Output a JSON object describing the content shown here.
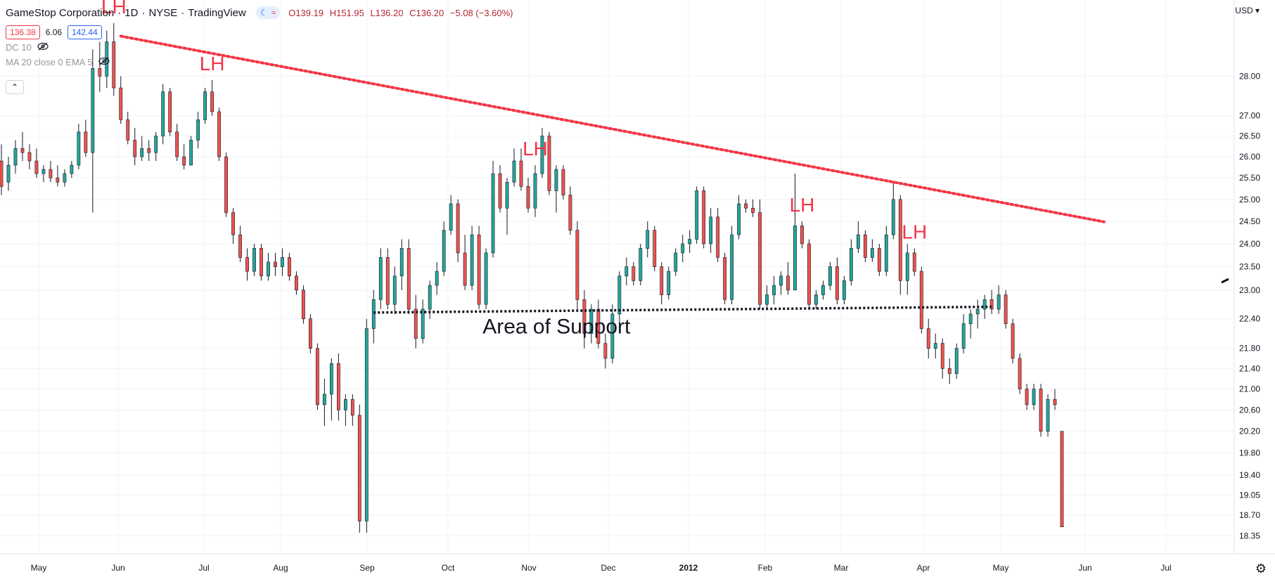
{
  "header": {
    "symbol": "GameStop Corporation",
    "interval": "1D",
    "exchange": "NYSE",
    "source": "TradingView",
    "ohlc": {
      "open": "O139.19",
      "high": "H151.95",
      "low": "L136.20",
      "close": "C136.20",
      "change": "−5.08 (−3.60%)"
    },
    "price_sell": "136.38",
    "spread": "6.06",
    "price_buy": "142.44",
    "indicator_1": "DC 10",
    "indicator_2": "MA 20 close 0 EMA 5",
    "collapse_glyph": "⌃",
    "currency": "USD"
  },
  "colors": {
    "up": "#26a69a",
    "down": "#ef5350",
    "wick": "#131722",
    "trendline": "#f23645",
    "support": "#131722",
    "grid": "#f0f3fa"
  },
  "chart_data": {
    "type": "candlestick",
    "title": "GameStop Corporation · 1D · NYSE",
    "price_axis_ticks": [
      18.35,
      18.7,
      19.05,
      19.4,
      19.8,
      20.2,
      20.6,
      21.0,
      21.4,
      21.8,
      22.4,
      23.0,
      23.5,
      24.0,
      24.5,
      25.0,
      25.5,
      26.0,
      26.5,
      27.0,
      28.0
    ],
    "time_axis_ticks": [
      "May",
      "Jun",
      "Jul",
      "Aug",
      "Sep",
      "Oct",
      "Nov",
      "Dec",
      "2012",
      "Feb",
      "Mar",
      "Apr",
      "May",
      "Jun",
      "Jul"
    ],
    "ylim": [
      18.2,
      29.8
    ],
    "candles": [
      {
        "o": 25.9,
        "h": 26.3,
        "l": 25.1,
        "c": 25.3
      },
      {
        "o": 25.4,
        "h": 26.0,
        "l": 25.2,
        "c": 25.8
      },
      {
        "o": 25.8,
        "h": 26.4,
        "l": 25.6,
        "c": 26.2
      },
      {
        "o": 26.2,
        "h": 26.6,
        "l": 25.9,
        "c": 26.1
      },
      {
        "o": 26.1,
        "h": 26.3,
        "l": 25.7,
        "c": 25.9
      },
      {
        "o": 25.9,
        "h": 26.2,
        "l": 25.5,
        "c": 25.6
      },
      {
        "o": 25.6,
        "h": 25.8,
        "l": 25.4,
        "c": 25.7
      },
      {
        "o": 25.7,
        "h": 25.9,
        "l": 25.4,
        "c": 25.5
      },
      {
        "o": 25.5,
        "h": 25.8,
        "l": 25.3,
        "c": 25.4
      },
      {
        "o": 25.4,
        "h": 25.7,
        "l": 25.3,
        "c": 25.6
      },
      {
        "o": 25.6,
        "h": 25.9,
        "l": 25.5,
        "c": 25.8
      },
      {
        "o": 25.8,
        "h": 26.8,
        "l": 25.7,
        "c": 26.6
      },
      {
        "o": 26.6,
        "h": 26.9,
        "l": 26.0,
        "c": 26.1
      },
      {
        "o": 26.1,
        "h": 28.7,
        "l": 24.7,
        "c": 28.2
      },
      {
        "o": 28.2,
        "h": 28.9,
        "l": 27.6,
        "c": 28.0
      },
      {
        "o": 28.0,
        "h": 29.2,
        "l": 27.7,
        "c": 28.9
      },
      {
        "o": 28.9,
        "h": 29.4,
        "l": 27.5,
        "c": 27.7
      },
      {
        "o": 27.7,
        "h": 28.0,
        "l": 26.8,
        "c": 26.9
      },
      {
        "o": 26.9,
        "h": 27.1,
        "l": 26.3,
        "c": 26.4
      },
      {
        "o": 26.4,
        "h": 26.7,
        "l": 25.8,
        "c": 26.0
      },
      {
        "o": 26.0,
        "h": 26.5,
        "l": 25.9,
        "c": 26.2
      },
      {
        "o": 26.2,
        "h": 26.4,
        "l": 25.9,
        "c": 26.1
      },
      {
        "o": 26.1,
        "h": 26.6,
        "l": 25.9,
        "c": 26.5
      },
      {
        "o": 26.5,
        "h": 27.8,
        "l": 26.3,
        "c": 27.6
      },
      {
        "o": 27.6,
        "h": 27.7,
        "l": 26.5,
        "c": 26.6
      },
      {
        "o": 26.6,
        "h": 26.8,
        "l": 25.9,
        "c": 26.0
      },
      {
        "o": 26.0,
        "h": 26.3,
        "l": 25.7,
        "c": 25.8
      },
      {
        "o": 25.8,
        "h": 26.5,
        "l": 25.8,
        "c": 26.4
      },
      {
        "o": 26.4,
        "h": 27.1,
        "l": 26.2,
        "c": 26.9
      },
      {
        "o": 26.9,
        "h": 27.7,
        "l": 26.8,
        "c": 27.6
      },
      {
        "o": 27.6,
        "h": 27.9,
        "l": 27.0,
        "c": 27.1
      },
      {
        "o": 27.1,
        "h": 27.2,
        "l": 25.9,
        "c": 26.0
      },
      {
        "o": 26.0,
        "h": 26.1,
        "l": 24.6,
        "c": 24.7
      },
      {
        "o": 24.7,
        "h": 24.8,
        "l": 24.0,
        "c": 24.2
      },
      {
        "o": 24.2,
        "h": 24.4,
        "l": 23.6,
        "c": 23.7
      },
      {
        "o": 23.7,
        "h": 23.9,
        "l": 23.2,
        "c": 23.4
      },
      {
        "o": 23.4,
        "h": 24.0,
        "l": 23.3,
        "c": 23.9
      },
      {
        "o": 23.9,
        "h": 24.0,
        "l": 23.2,
        "c": 23.3
      },
      {
        "o": 23.3,
        "h": 23.8,
        "l": 23.2,
        "c": 23.6
      },
      {
        "o": 23.6,
        "h": 23.8,
        "l": 23.3,
        "c": 23.5
      },
      {
        "o": 23.5,
        "h": 23.9,
        "l": 23.3,
        "c": 23.7
      },
      {
        "o": 23.7,
        "h": 23.8,
        "l": 23.2,
        "c": 23.3
      },
      {
        "o": 23.3,
        "h": 23.4,
        "l": 22.9,
        "c": 23.0
      },
      {
        "o": 23.0,
        "h": 23.1,
        "l": 22.3,
        "c": 22.4
      },
      {
        "o": 22.4,
        "h": 22.5,
        "l": 21.7,
        "c": 21.8
      },
      {
        "o": 21.8,
        "h": 21.9,
        "l": 20.6,
        "c": 20.7
      },
      {
        "o": 20.7,
        "h": 21.2,
        "l": 20.3,
        "c": 20.9
      },
      {
        "o": 20.9,
        "h": 21.6,
        "l": 20.4,
        "c": 21.5
      },
      {
        "o": 21.5,
        "h": 21.7,
        "l": 20.4,
        "c": 20.6
      },
      {
        "o": 20.6,
        "h": 20.9,
        "l": 20.3,
        "c": 20.8
      },
      {
        "o": 20.8,
        "h": 20.9,
        "l": 20.3,
        "c": 20.5
      },
      {
        "o": 20.5,
        "h": 20.7,
        "l": 18.4,
        "c": 18.6
      },
      {
        "o": 18.6,
        "h": 22.4,
        "l": 18.4,
        "c": 22.2
      },
      {
        "o": 22.2,
        "h": 23.0,
        "l": 21.9,
        "c": 22.8
      },
      {
        "o": 22.8,
        "h": 23.9,
        "l": 22.6,
        "c": 23.7
      },
      {
        "o": 23.7,
        "h": 23.9,
        "l": 22.6,
        "c": 22.7
      },
      {
        "o": 22.7,
        "h": 23.5,
        "l": 22.5,
        "c": 23.3
      },
      {
        "o": 23.3,
        "h": 24.1,
        "l": 23.0,
        "c": 23.9
      },
      {
        "o": 23.9,
        "h": 24.1,
        "l": 22.5,
        "c": 22.6
      },
      {
        "o": 22.6,
        "h": 22.9,
        "l": 21.8,
        "c": 22.0
      },
      {
        "o": 22.0,
        "h": 22.8,
        "l": 21.9,
        "c": 22.6
      },
      {
        "o": 22.6,
        "h": 23.2,
        "l": 22.4,
        "c": 23.1
      },
      {
        "o": 23.1,
        "h": 23.6,
        "l": 22.9,
        "c": 23.4
      },
      {
        "o": 23.4,
        "h": 24.5,
        "l": 23.3,
        "c": 24.3
      },
      {
        "o": 24.3,
        "h": 25.1,
        "l": 24.2,
        "c": 24.9
      },
      {
        "o": 24.9,
        "h": 25.0,
        "l": 23.6,
        "c": 23.8
      },
      {
        "o": 23.8,
        "h": 24.2,
        "l": 23.0,
        "c": 23.1
      },
      {
        "o": 23.1,
        "h": 24.4,
        "l": 23.0,
        "c": 24.2
      },
      {
        "o": 24.2,
        "h": 24.4,
        "l": 22.6,
        "c": 22.7
      },
      {
        "o": 22.7,
        "h": 23.9,
        "l": 22.6,
        "c": 23.8
      },
      {
        "o": 23.8,
        "h": 25.9,
        "l": 23.7,
        "c": 25.6
      },
      {
        "o": 25.6,
        "h": 25.8,
        "l": 24.7,
        "c": 24.8
      },
      {
        "o": 24.8,
        "h": 25.5,
        "l": 24.2,
        "c": 25.4
      },
      {
        "o": 25.4,
        "h": 26.2,
        "l": 25.3,
        "c": 25.9
      },
      {
        "o": 25.9,
        "h": 26.2,
        "l": 25.2,
        "c": 25.3
      },
      {
        "o": 25.3,
        "h": 25.5,
        "l": 24.7,
        "c": 24.8
      },
      {
        "o": 24.8,
        "h": 25.8,
        "l": 24.6,
        "c": 25.6
      },
      {
        "o": 25.6,
        "h": 26.7,
        "l": 25.5,
        "c": 26.5
      },
      {
        "o": 26.5,
        "h": 26.6,
        "l": 25.1,
        "c": 25.2
      },
      {
        "o": 25.2,
        "h": 25.8,
        "l": 24.7,
        "c": 25.7
      },
      {
        "o": 25.7,
        "h": 25.8,
        "l": 25.0,
        "c": 25.1
      },
      {
        "o": 25.1,
        "h": 25.3,
        "l": 24.2,
        "c": 24.3
      },
      {
        "o": 24.3,
        "h": 24.5,
        "l": 22.6,
        "c": 22.8
      },
      {
        "o": 22.8,
        "h": 23.0,
        "l": 21.8,
        "c": 22.1
      },
      {
        "o": 22.1,
        "h": 22.7,
        "l": 21.9,
        "c": 22.6
      },
      {
        "o": 22.6,
        "h": 22.8,
        "l": 21.8,
        "c": 21.9
      },
      {
        "o": 21.9,
        "h": 22.1,
        "l": 21.4,
        "c": 21.6
      },
      {
        "o": 21.6,
        "h": 22.7,
        "l": 21.5,
        "c": 22.5
      },
      {
        "o": 22.5,
        "h": 23.4,
        "l": 22.3,
        "c": 23.3
      },
      {
        "o": 23.3,
        "h": 23.7,
        "l": 23.1,
        "c": 23.5
      },
      {
        "o": 23.5,
        "h": 23.6,
        "l": 23.1,
        "c": 23.2
      },
      {
        "o": 23.2,
        "h": 24.0,
        "l": 23.1,
        "c": 23.9
      },
      {
        "o": 23.9,
        "h": 24.5,
        "l": 23.7,
        "c": 24.3
      },
      {
        "o": 24.3,
        "h": 24.4,
        "l": 23.4,
        "c": 23.5
      },
      {
        "o": 23.5,
        "h": 23.6,
        "l": 22.7,
        "c": 22.9
      },
      {
        "o": 22.9,
        "h": 23.5,
        "l": 22.8,
        "c": 23.4
      },
      {
        "o": 23.4,
        "h": 23.9,
        "l": 23.3,
        "c": 23.8
      },
      {
        "o": 23.8,
        "h": 24.2,
        "l": 23.6,
        "c": 24.0
      },
      {
        "o": 24.0,
        "h": 24.3,
        "l": 23.8,
        "c": 24.1
      },
      {
        "o": 24.1,
        "h": 25.3,
        "l": 24.0,
        "c": 25.2
      },
      {
        "o": 25.2,
        "h": 25.3,
        "l": 23.9,
        "c": 24.0
      },
      {
        "o": 24.0,
        "h": 24.8,
        "l": 23.8,
        "c": 24.6
      },
      {
        "o": 24.6,
        "h": 24.8,
        "l": 23.6,
        "c": 23.7
      },
      {
        "o": 23.7,
        "h": 23.8,
        "l": 22.7,
        "c": 22.8
      },
      {
        "o": 22.8,
        "h": 24.4,
        "l": 22.7,
        "c": 24.2
      },
      {
        "o": 24.2,
        "h": 25.1,
        "l": 24.1,
        "c": 24.9
      },
      {
        "o": 24.9,
        "h": 25.0,
        "l": 24.7,
        "c": 24.8
      },
      {
        "o": 24.8,
        "h": 25.0,
        "l": 24.6,
        "c": 24.7
      },
      {
        "o": 24.7,
        "h": 25.0,
        "l": 22.6,
        "c": 22.7
      },
      {
        "o": 22.7,
        "h": 23.1,
        "l": 22.6,
        "c": 22.9
      },
      {
        "o": 22.9,
        "h": 23.3,
        "l": 22.7,
        "c": 23.1
      },
      {
        "o": 23.1,
        "h": 23.4,
        "l": 22.9,
        "c": 23.3
      },
      {
        "o": 23.3,
        "h": 23.6,
        "l": 22.9,
        "c": 23.0
      },
      {
        "o": 23.0,
        "h": 25.6,
        "l": 23.0,
        "c": 24.4
      },
      {
        "o": 24.4,
        "h": 24.5,
        "l": 23.9,
        "c": 24.0
      },
      {
        "o": 24.0,
        "h": 24.1,
        "l": 22.6,
        "c": 22.7
      },
      {
        "o": 22.7,
        "h": 23.0,
        "l": 22.6,
        "c": 22.9
      },
      {
        "o": 22.9,
        "h": 23.2,
        "l": 22.8,
        "c": 23.1
      },
      {
        "o": 23.1,
        "h": 23.6,
        "l": 23.0,
        "c": 23.5
      },
      {
        "o": 23.5,
        "h": 23.7,
        "l": 22.7,
        "c": 22.8
      },
      {
        "o": 22.8,
        "h": 23.3,
        "l": 22.7,
        "c": 23.2
      },
      {
        "o": 23.2,
        "h": 24.1,
        "l": 23.1,
        "c": 23.9
      },
      {
        "o": 23.9,
        "h": 24.5,
        "l": 23.8,
        "c": 24.2
      },
      {
        "o": 24.2,
        "h": 24.3,
        "l": 23.6,
        "c": 23.7
      },
      {
        "o": 23.7,
        "h": 24.1,
        "l": 23.6,
        "c": 23.9
      },
      {
        "o": 23.9,
        "h": 24.0,
        "l": 23.3,
        "c": 23.4
      },
      {
        "o": 23.4,
        "h": 24.4,
        "l": 23.3,
        "c": 24.2
      },
      {
        "o": 24.2,
        "h": 25.4,
        "l": 24.1,
        "c": 25.0
      },
      {
        "o": 25.0,
        "h": 25.1,
        "l": 22.9,
        "c": 23.2
      },
      {
        "o": 23.2,
        "h": 24.0,
        "l": 22.9,
        "c": 23.8
      },
      {
        "o": 23.8,
        "h": 23.9,
        "l": 23.3,
        "c": 23.4
      },
      {
        "o": 23.4,
        "h": 23.5,
        "l": 22.1,
        "c": 22.2
      },
      {
        "o": 22.2,
        "h": 22.4,
        "l": 21.6,
        "c": 21.8
      },
      {
        "o": 21.8,
        "h": 22.1,
        "l": 21.6,
        "c": 21.9
      },
      {
        "o": 21.9,
        "h": 22.0,
        "l": 21.2,
        "c": 21.4
      },
      {
        "o": 21.4,
        "h": 21.6,
        "l": 21.1,
        "c": 21.3
      },
      {
        "o": 21.3,
        "h": 21.9,
        "l": 21.2,
        "c": 21.8
      },
      {
        "o": 21.8,
        "h": 22.5,
        "l": 21.7,
        "c": 22.3
      },
      {
        "o": 22.3,
        "h": 22.6,
        "l": 22.0,
        "c": 22.5
      },
      {
        "o": 22.5,
        "h": 22.8,
        "l": 22.2,
        "c": 22.6
      },
      {
        "o": 22.6,
        "h": 22.9,
        "l": 22.4,
        "c": 22.8
      },
      {
        "o": 22.8,
        "h": 23.0,
        "l": 22.5,
        "c": 22.6
      },
      {
        "o": 22.6,
        "h": 23.1,
        "l": 22.5,
        "c": 22.9
      },
      {
        "o": 22.9,
        "h": 23.0,
        "l": 22.2,
        "c": 22.3
      },
      {
        "o": 22.3,
        "h": 22.4,
        "l": 21.5,
        "c": 21.6
      },
      {
        "o": 21.6,
        "h": 21.7,
        "l": 20.9,
        "c": 21.0
      },
      {
        "o": 21.0,
        "h": 21.1,
        "l": 20.6,
        "c": 20.7
      },
      {
        "o": 20.7,
        "h": 21.1,
        "l": 20.6,
        "c": 21.0
      },
      {
        "o": 21.0,
        "h": 21.1,
        "l": 20.1,
        "c": 20.2
      },
      {
        "o": 20.2,
        "h": 20.9,
        "l": 20.1,
        "c": 20.8
      },
      {
        "o": 20.8,
        "h": 21.0,
        "l": 20.6,
        "c": 20.7
      },
      {
        "o": 20.2,
        "h": 20.2,
        "l": 18.5,
        "c": 18.5
      }
    ],
    "annotations": {
      "lower_highs": [
        {
          "label": "LH",
          "candle": 16
        },
        {
          "label": "LH",
          "candle": 30
        },
        {
          "label": "LH",
          "candle": 76
        },
        {
          "label": "LH",
          "candle": 114
        },
        {
          "label": "LH",
          "candle": 130
        }
      ],
      "trendline": {
        "from": {
          "candle": 17,
          "price": 29.05
        },
        "to": {
          "candle": 157,
          "price": 24.49
        }
      },
      "support_line": {
        "from": {
          "candle": 53,
          "price": 22.53
        },
        "to": {
          "candle": 141,
          "price": 22.65
        }
      },
      "support_label": "Area of Support"
    }
  }
}
